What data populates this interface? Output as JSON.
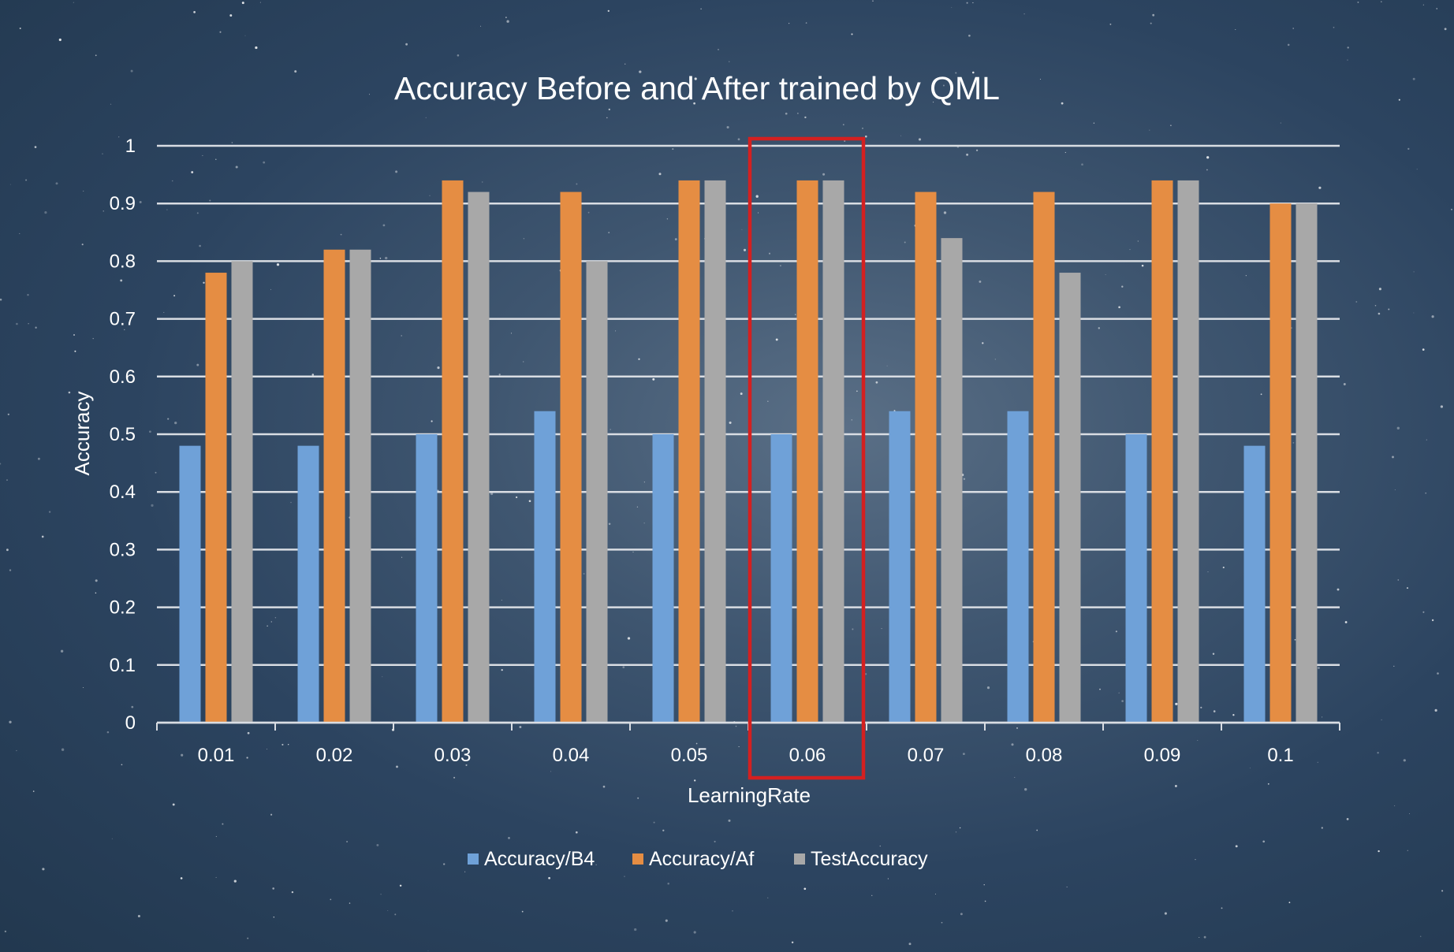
{
  "chart_data": {
    "type": "bar",
    "title": "Accuracy Before and After trained by QML",
    "xlabel": "LearningRate",
    "ylabel": "Accuracy",
    "categories": [
      "0.01",
      "0.02",
      "0.03",
      "0.04",
      "0.05",
      "0.06",
      "0.07",
      "0.08",
      "0.09",
      "0.1"
    ],
    "series": [
      {
        "name": "Accuracy/B4",
        "color": "#6fa1d8",
        "values": [
          0.48,
          0.48,
          0.5,
          0.54,
          0.5,
          0.5,
          0.54,
          0.54,
          0.5,
          0.48
        ]
      },
      {
        "name": "Accuracy/Af",
        "color": "#e58d43",
        "values": [
          0.78,
          0.82,
          0.94,
          0.92,
          0.94,
          0.94,
          0.92,
          0.92,
          0.94,
          0.9
        ]
      },
      {
        "name": "TestAccuracy",
        "color": "#a8a8a8",
        "values": [
          0.8,
          0.82,
          0.92,
          0.8,
          0.94,
          0.94,
          0.84,
          0.78,
          0.94,
          0.9
        ]
      }
    ],
    "ylim": [
      0,
      1
    ],
    "yticks": [
      "0",
      "0.1",
      "0.2",
      "0.3",
      "0.4",
      "0.5",
      "0.6",
      "0.7",
      "0.8",
      "0.9",
      "1"
    ],
    "grid": true,
    "legend_position": "bottom",
    "highlight": {
      "category": "0.06",
      "color": "#d42020"
    }
  }
}
